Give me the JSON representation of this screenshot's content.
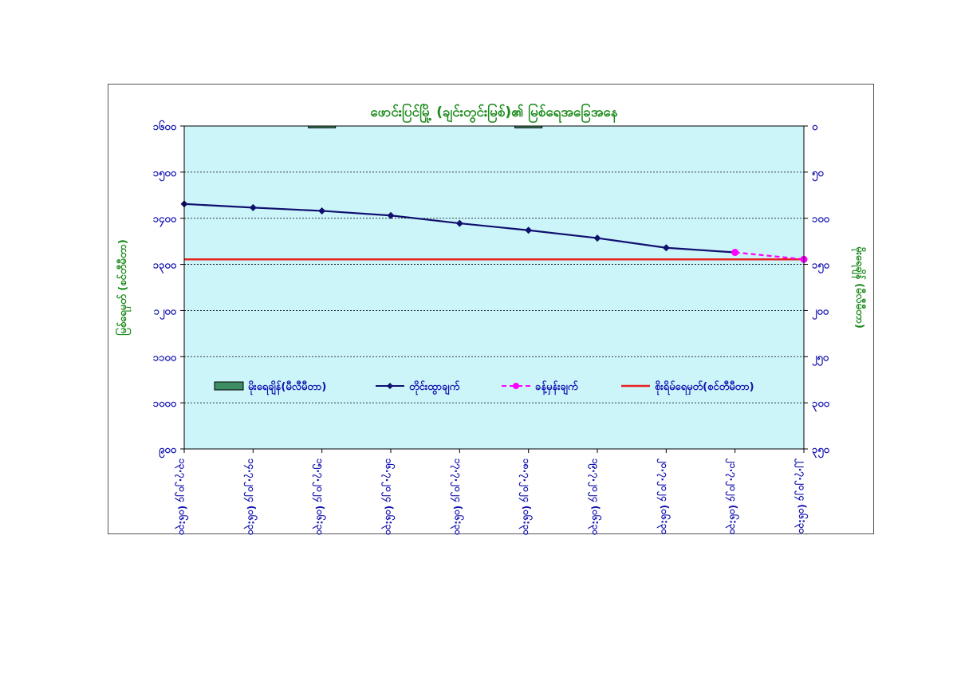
{
  "chart_data": {
    "type": "line",
    "title": "ဖောင်းပြင်မြို့ (ချင်းတွင်းမြစ်)၏ မြစ်ရေအခြေအနေ",
    "ylabel": "မြစ်ရေမှတ် (စင်တီမီတာ)",
    "y2label": "မိုးရေချိန် (မီလီမီတာ)",
    "ylim": [
      900,
      1600
    ],
    "yticks": [
      "၁၆၀၀",
      "၁၅၀၀",
      "၁၄၀၀",
      "၁၃၀၀",
      "၁၂၀၀",
      "၁၁၀၀",
      "၁၀၀၀",
      "၉၀၀"
    ],
    "ytick_values": [
      1600,
      1500,
      1400,
      1300,
      1200,
      1100,
      1000,
      900
    ],
    "y2lim": [
      0,
      350
    ],
    "y2ticks": [
      "၀",
      "၅၀",
      "၁၀၀",
      "၁၅၀",
      "၂၀၀",
      "၂၅၀",
      "၃၀၀",
      "၃၅၀"
    ],
    "y2tick_values": [
      0,
      50,
      100,
      150,
      200,
      250,
      300,
      350
    ],
    "grid": true,
    "legend_position": "bottom",
    "categories": [
      "၁၃.၇.၂၀၂၄ (၀၆:၃၀)",
      "၁၄.၇.၂၀၂၄ (၀၆:၃၀)",
      "၁၅.၇.၂၀၂၄ (၀၆:၃၀)",
      "၁၆.၇.၂၀၂၄ (၀၆:၃၀)",
      "၁၇.၇.၂၀၂၄ (၀၆:၃၀)",
      "၁၈.၇.၂၀၂၄ (၀၆:၃၀)",
      "၁၉.၇.၂၀၂၄ (၀၆:၃၀)",
      "၂၀.၇.၂၀၂၄ (၀၆:၃၀)",
      "၂၁.၇.၂၀၂၄ (၀၆:၃၀)",
      "၂၂.၇.၂၀၂၄ (၀၆:၃၀)"
    ],
    "series": [
      {
        "name": "မိုးရေချိန်(မီလီမီတာ)",
        "kind": "bar",
        "axis": "secondary",
        "color": "#3c8c64",
        "values": [
          0,
          0,
          2,
          0,
          0,
          2,
          0,
          0,
          0,
          null
        ]
      },
      {
        "name": "တိုင်းထွာချက်",
        "kind": "line",
        "axis": "primary",
        "color": "#10106e",
        "marker": "diamond",
        "values": [
          1431,
          1423,
          1416,
          1406,
          1389,
          1374,
          1357,
          1336,
          1326,
          null
        ]
      },
      {
        "name": "ခန့်မှန်းချက်",
        "kind": "line",
        "axis": "primary",
        "color": "#ff00ff",
        "marker": "circle",
        "dashed": true,
        "values": [
          null,
          null,
          null,
          null,
          null,
          null,
          null,
          null,
          1326,
          1311
        ]
      },
      {
        "name": "စိုးရိမ်ရေမှတ်(စင်တီမီတာ)",
        "kind": "reference",
        "axis": "primary",
        "color": "#e82020",
        "value": 1311
      }
    ]
  }
}
